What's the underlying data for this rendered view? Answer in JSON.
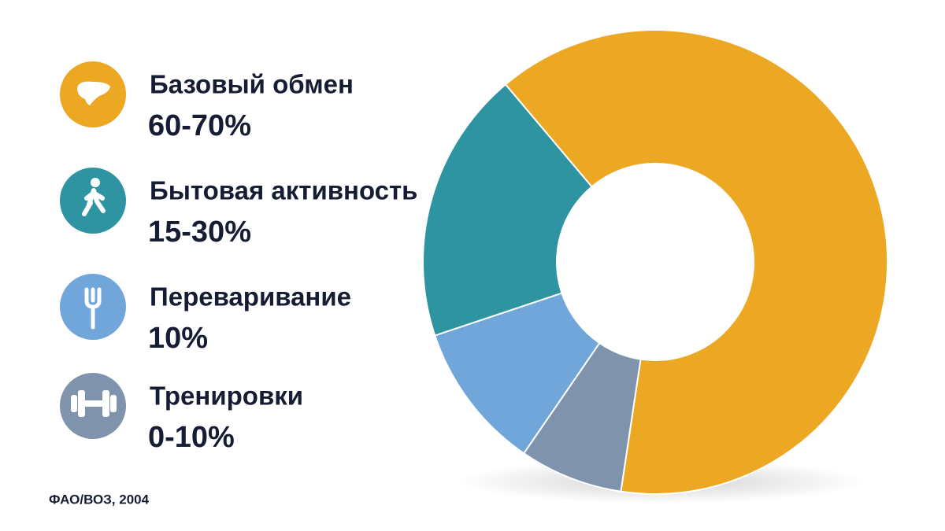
{
  "chart_data": {
    "type": "donut",
    "categories": [
      "Базовый обмен",
      "Бытовая активность",
      "Переваривание",
      "Тренировки"
    ],
    "values": [
      63.5,
      19,
      10.3,
      7.2
    ],
    "ranges": [
      "60-70%",
      "15-30%",
      "10%",
      "0-10%"
    ],
    "colors": [
      "#eda823",
      "#2f94a1",
      "#71a6da",
      "#7f93ad"
    ],
    "source": "ФАО/ВОЗ, 2004"
  }
}
